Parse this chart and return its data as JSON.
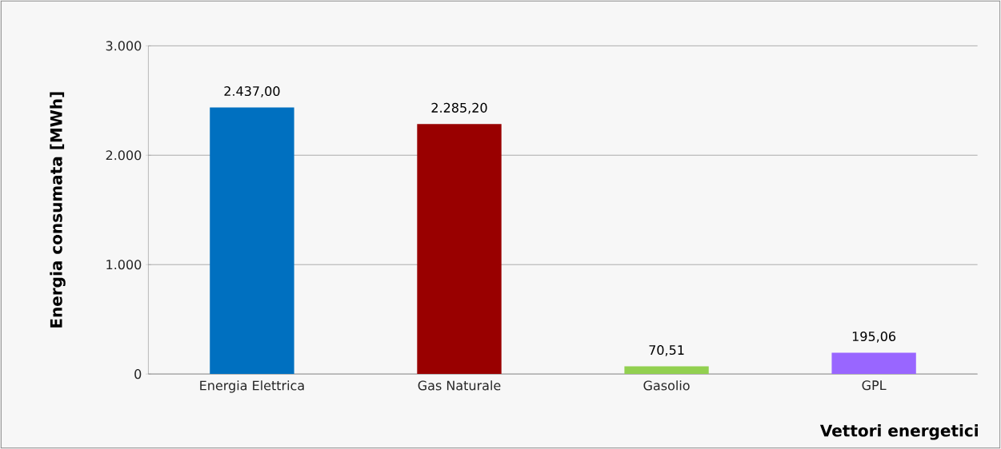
{
  "chart_data": {
    "type": "bar",
    "xlabel": "Vettori energetici",
    "ylabel": "Energia consumata [MWh]",
    "categories": [
      "Energia Elettrica",
      "Gas Naturale",
      "Gasolio",
      "GPL"
    ],
    "values": [
      2437.0,
      2285.2,
      70.51,
      195.06
    ],
    "colors": [
      "#0070c0",
      "#990000",
      "#92d050",
      "#9966ff"
    ],
    "value_labels": [
      "2.437,00",
      "2.285,20",
      "70,51",
      "195,06"
    ],
    "ylim": [
      0,
      3000
    ],
    "yticks": [
      0,
      {
        "value": 1000,
        "label": "1.000"
      },
      {
        "value": 2000,
        "label": "2.000"
      },
      {
        "value": 3000,
        "label": "3.000"
      }
    ],
    "grid": "y"
  }
}
